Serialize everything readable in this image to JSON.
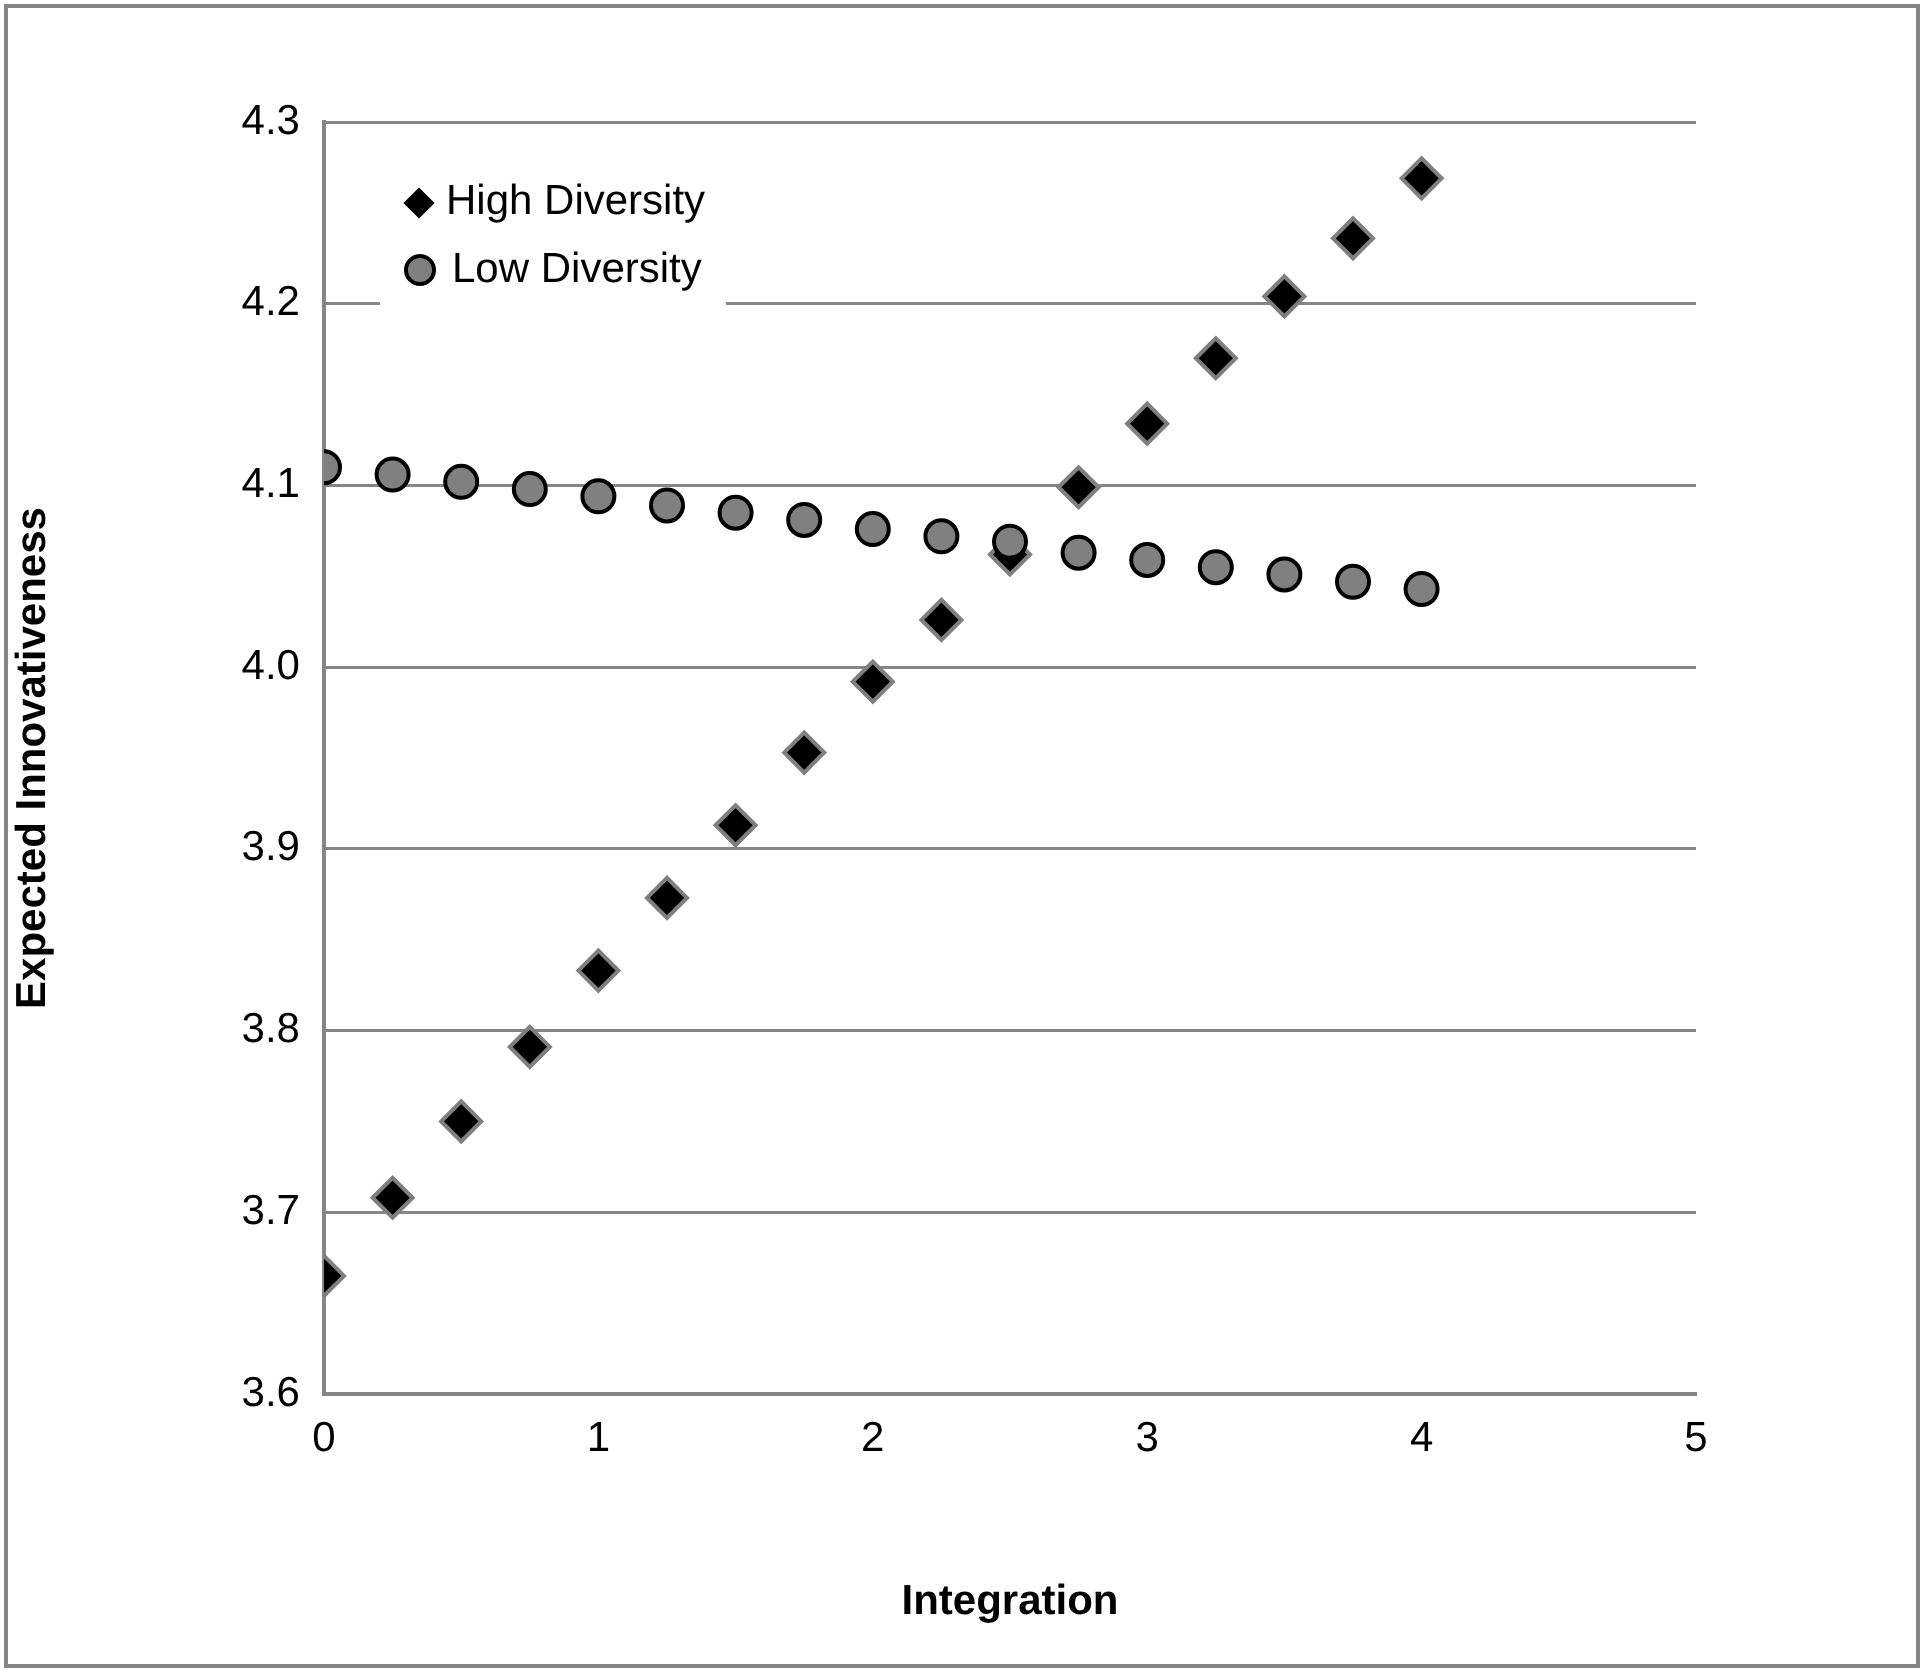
{
  "chart_data": {
    "type": "scatter",
    "xlabel": "Integration",
    "ylabel": "Expected Innovativeness",
    "x": [
      0,
      0.25,
      0.5,
      0.75,
      1,
      1.25,
      1.5,
      1.75,
      2,
      2.25,
      2.5,
      2.75,
      3,
      3.25,
      3.5,
      3.75,
      4
    ],
    "series": [
      {
        "name": "High Diversity",
        "color": "#000000",
        "marker": "diamond",
        "values": [
          3.665,
          3.708,
          3.75,
          3.791,
          3.833,
          3.873,
          3.913,
          3.953,
          3.992,
          4.026,
          4.062,
          4.099,
          4.134,
          4.17,
          4.204,
          4.236,
          4.269
        ]
      },
      {
        "name": "Low Diversity",
        "color": "#808080",
        "marker": "circle",
        "values": [
          4.11,
          4.106,
          4.102,
          4.098,
          4.094,
          4.089,
          4.085,
          4.081,
          4.076,
          4.072,
          4.069,
          4.063,
          4.059,
          4.055,
          4.051,
          4.047,
          4.043
        ]
      }
    ],
    "xlim": [
      0,
      5
    ],
    "xticks": [
      0,
      1,
      2,
      3,
      4,
      5
    ],
    "ylim": [
      3.6,
      4.3
    ],
    "yticks": [
      {
        "value": 3.6,
        "label": "3.6"
      },
      {
        "value": 3.7,
        "label": "3.7"
      },
      {
        "value": 3.8,
        "label": "3.8"
      },
      {
        "value": 3.9,
        "label": "3.9"
      },
      {
        "value": 4.0,
        "label": "4.0"
      },
      {
        "value": 4.1,
        "label": "4.1"
      },
      {
        "value": 4.2,
        "label": "4.2"
      },
      {
        "value": 4.3,
        "label": "4.3"
      }
    ],
    "grid": "y",
    "legend": "top left"
  }
}
